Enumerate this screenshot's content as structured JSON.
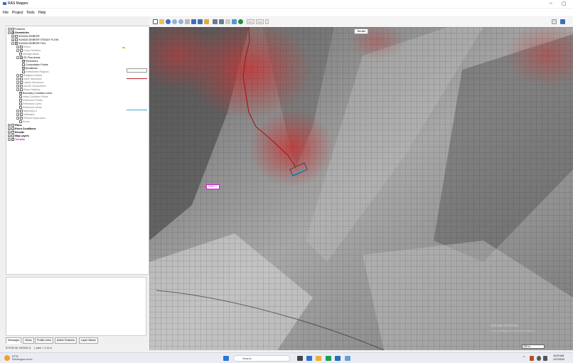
{
  "window": {
    "title": "RAS Mapper",
    "minimize": "–",
    "restore": "▢"
  },
  "menu": [
    "File",
    "Project",
    "Tools",
    "Help"
  ],
  "toolbar": {
    "box1": "Max",
    "box2": "Max",
    "box3": ""
  },
  "tree": {
    "features": "Features",
    "geometries": "Geometries",
    "geom1": "SUNGAI DEBEER",
    "geom2": "SUNGAI DEBEER STEADY FLOW",
    "geom3": "SUNGAI DEBEER FULL",
    "rivers": "Rivers",
    "cross_sections": "Cross Sections",
    "storage_areas": "Storage Areas",
    "flow_areas": "2D Flow Areas",
    "perimeters": "Perimeters",
    "computation_points": "Computation Points",
    "breaklines": "Breaklines",
    "refinement_regions": "Refinement Regions",
    "bridges_culverts": "Bridges/Culverts",
    "inline_structures": "Inline Structures",
    "lateral_structures": "Lateral Structures",
    "sa2d_connections": "SA/2D Connections",
    "pump_stations": "Pump Stations",
    "bc_lines": "Boundary Condition Lines",
    "initial_condition_points": "Initial Condition Points",
    "reference_points": "Reference Points",
    "reference_lines": "Reference Lines",
    "reference_areas": "Reference Areas",
    "mannings_n": "Manning's n",
    "infiltration": "Infiltration",
    "percent_impervious": "Percent Impervious",
    "errors": "Errors",
    "plans": "Plans",
    "event_conditions": "Event Conditions",
    "results": "Results",
    "map_layers": "Map Layers",
    "terrains": "Terrains"
  },
  "tabs": [
    "Messages",
    "Views",
    "Profile Lines",
    "Active Features",
    "Layer Values"
  ],
  "status": {
    "coords": "674750.35, 532945.11",
    "pixel": "1 pixel = 2.43 m"
  },
  "map": {
    "terrain_label": "Terrain",
    "area_label": "DEM 71",
    "scale_label": "200 m",
    "watermark_1": "Activate Windows",
    "watermark_2": "Go to Settings to activate Windows."
  },
  "taskbar": {
    "weather_temp": "27°C",
    "weather_desc": "Sebahagian cerah",
    "search_placeholder": "Search",
    "time": "10:20 AM",
    "date": "1/27/2024"
  },
  "colors": {
    "accent_red": "#c0202a",
    "bc_line": "#3aa7d8",
    "terrain_label_bg": "#ffffff",
    "area_label": "#d020d0"
  }
}
